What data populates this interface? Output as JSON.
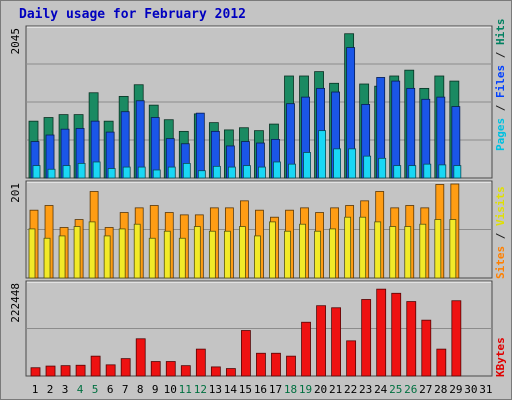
{
  "chart_data": {
    "type": "bar",
    "title": "Daily usage for February 2012",
    "x": [
      "1",
      "2",
      "3",
      "4",
      "5",
      "6",
      "7",
      "8",
      "9",
      "10",
      "11",
      "12",
      "13",
      "14",
      "15",
      "16",
      "17",
      "18",
      "19",
      "20",
      "21",
      "22",
      "23",
      "24",
      "25",
      "26",
      "27",
      "28",
      "29",
      "30",
      "31"
    ],
    "weekend_days": [
      "4",
      "5",
      "11",
      "12",
      "18",
      "19",
      "25",
      "26"
    ],
    "panels": [
      {
        "id": "pages-files-hits",
        "max_label": "2045",
        "ylim": [
          0,
          2045
        ],
        "right_label": [
          {
            "text": "Pages",
            "color": "#00c0e0"
          },
          {
            "text": " / ",
            "color": "#202020"
          },
          {
            "text": "Files",
            "color": "#0040ff"
          },
          {
            "text": " / ",
            "color": "#202020"
          },
          {
            "text": "Hits",
            "color": "#008060"
          }
        ],
        "series": [
          {
            "name": "Hits",
            "color": "#1a8a62",
            "values": [
              780,
              830,
              870,
              870,
              1170,
              780,
              1120,
              1280,
              1000,
              800,
              640,
              880,
              760,
              660,
              690,
              650,
              740,
              1400,
              1400,
              1460,
              1300,
              1980,
              1290,
              1260,
              1400,
              1480,
              1230,
              1400,
              1330,
              null,
              null
            ]
          },
          {
            "name": "Files",
            "color": "#1a56e8",
            "values": [
              500,
              590,
              670,
              680,
              780,
              630,
              910,
              1060,
              830,
              540,
              470,
              890,
              640,
              440,
              500,
              480,
              530,
              1020,
              1110,
              1230,
              1180,
              1790,
              1010,
              1380,
              1330,
              1230,
              1080,
              1110,
              980,
              null,
              null
            ]
          },
          {
            "name": "Pages",
            "color": "#19d7f5",
            "values": [
              170,
              120,
              170,
              200,
              220,
              130,
              150,
              150,
              110,
              150,
              200,
              100,
              160,
              150,
              170,
              150,
              220,
              190,
              350,
              650,
              400,
              400,
              300,
              270,
              170,
              170,
              190,
              180,
              170,
              null,
              null
            ]
          }
        ]
      },
      {
        "id": "sites-visits",
        "max_label": "201",
        "ylim": [
          0,
          201
        ],
        "right_label": [
          {
            "text": "Sites",
            "color": "#ff8000"
          },
          {
            "text": " / ",
            "color": "#202020"
          },
          {
            "text": "Visits",
            "color": "#e0e000"
          }
        ],
        "series": [
          {
            "name": "Visits",
            "color": "#ff9d14",
            "values": [
              145,
              155,
              108,
              125,
              185,
              108,
              140,
              150,
              155,
              140,
              135,
              135,
              150,
              150,
              165,
              145,
              130,
              145,
              150,
              140,
              150,
              155,
              165,
              185,
              150,
              155,
              150,
              200,
              201,
              null,
              null
            ]
          },
          {
            "name": "Sites",
            "color": "#f2ea28",
            "values": [
              105,
              85,
              90,
              110,
              120,
              90,
              105,
              115,
              85,
              100,
              85,
              110,
              100,
              100,
              110,
              90,
              120,
              100,
              115,
              100,
              105,
              130,
              130,
              120,
              110,
              110,
              115,
              125,
              125,
              null,
              null
            ]
          }
        ]
      },
      {
        "id": "kbytes",
        "max_label": "222448",
        "ylim": [
          0,
          222448
        ],
        "right_label": [
          {
            "text": "KBytes",
            "color": "#e00000"
          }
        ],
        "series": [
          {
            "name": "KBytes",
            "color": "#ee1111",
            "values": [
              20000,
              24000,
              25000,
              26000,
              48000,
              27000,
              42000,
              90000,
              35000,
              35000,
              25000,
              65000,
              22000,
              18000,
              110000,
              55000,
              55000,
              48000,
              130000,
              170000,
              165000,
              85000,
              185000,
              210000,
              200000,
              180000,
              135000,
              65000,
              182000,
              null,
              null
            ]
          }
        ]
      }
    ]
  }
}
